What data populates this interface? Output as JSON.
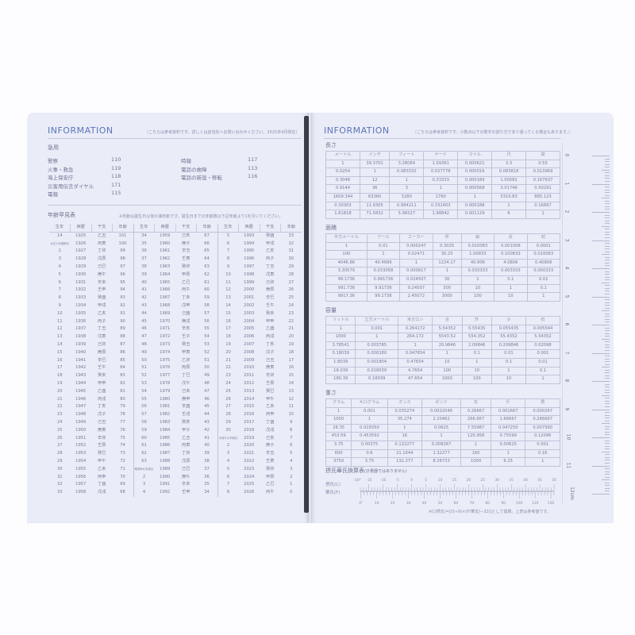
{
  "left": {
    "title": "INFORMATION",
    "note": "（こちらは参考資料です。詳しくは該当先へお問い合わせください。2025年4月現在）",
    "emergency": {
      "heading": "急用",
      "col1": [
        {
          "label": "警察",
          "num": "110"
        },
        {
          "label": "火事・救急",
          "num": "119"
        },
        {
          "label": "海上保安庁",
          "num": "118"
        },
        {
          "label": "災害用伝言ダイヤル",
          "num": "171"
        },
        {
          "label": "電報",
          "num": "115"
        }
      ],
      "col2": [
        {
          "label": "時報",
          "num": "117"
        },
        {
          "label": "電話の故障",
          "num": "113"
        },
        {
          "label": "電話の新設・移転",
          "num": "116"
        }
      ]
    },
    "age_table": {
      "heading": "年齢早見表",
      "note": "※年齢は誕生日以後の満年齢です。誕生日までの年齢数は下記年齢より1を引いてください。",
      "headers": [
        "生年",
        "西暦",
        "干支",
        "年齢"
      ],
      "groups": [
        [
          [
            "14",
            "1925",
            "乙丑",
            "101"
          ],
          [
            "大正15|昭和元",
            "1926",
            "丙寅",
            "100"
          ],
          [
            "2",
            "1927",
            "丁卯",
            "99"
          ],
          [
            "3",
            "1928",
            "戊辰",
            "98"
          ],
          [
            "4",
            "1929",
            "己巳",
            "97"
          ],
          [
            "5",
            "1930",
            "庚午",
            "96"
          ],
          [
            "6",
            "1931",
            "辛未",
            "95"
          ],
          [
            "7",
            "1932",
            "壬申",
            "94"
          ],
          [
            "8",
            "1933",
            "癸酉",
            "93"
          ],
          [
            "9",
            "1934",
            "甲戌",
            "92"
          ],
          [
            "10",
            "1935",
            "乙亥",
            "91"
          ],
          [
            "11",
            "1936",
            "丙子",
            "90"
          ],
          [
            "12",
            "1937",
            "丁丑",
            "89"
          ],
          [
            "13",
            "1938",
            "戊寅",
            "88"
          ],
          [
            "14",
            "1939",
            "己卯",
            "87"
          ],
          [
            "15",
            "1940",
            "庚辰",
            "86"
          ],
          [
            "16",
            "1941",
            "辛巳",
            "85"
          ],
          [
            "17",
            "1942",
            "壬午",
            "84"
          ],
          [
            "18",
            "1943",
            "癸未",
            "83"
          ],
          [
            "19",
            "1944",
            "甲申",
            "82"
          ],
          [
            "20",
            "1945",
            "乙酉",
            "81"
          ],
          [
            "21",
            "1946",
            "丙戌",
            "80"
          ],
          [
            "22",
            "1947",
            "丁亥",
            "79"
          ],
          [
            "23",
            "1948",
            "戊子",
            "78"
          ],
          [
            "24",
            "1949",
            "己丑",
            "77"
          ],
          [
            "25",
            "1950",
            "庚寅",
            "76"
          ],
          [
            "26",
            "1951",
            "辛卯",
            "75"
          ],
          [
            "27",
            "1952",
            "壬辰",
            "74"
          ],
          [
            "28",
            "1953",
            "癸巳",
            "73"
          ],
          [
            "29",
            "1954",
            "甲午",
            "72"
          ],
          [
            "30",
            "1955",
            "乙未",
            "71"
          ],
          [
            "31",
            "1956",
            "丙申",
            "70"
          ],
          [
            "32",
            "1957",
            "丁酉",
            "69"
          ],
          [
            "33",
            "1958",
            "戊戌",
            "68"
          ]
        ],
        [
          [
            "34",
            "1959",
            "己亥",
            "67"
          ],
          [
            "35",
            "1960",
            "庚子",
            "66"
          ],
          [
            "36",
            "1961",
            "辛丑",
            "65"
          ],
          [
            "37",
            "1962",
            "壬寅",
            "64"
          ],
          [
            "38",
            "1963",
            "癸卯",
            "63"
          ],
          [
            "39",
            "1964",
            "甲辰",
            "62"
          ],
          [
            "40",
            "1965",
            "乙巳",
            "61"
          ],
          [
            "41",
            "1966",
            "丙午",
            "60"
          ],
          [
            "42",
            "1967",
            "丁未",
            "59"
          ],
          [
            "43",
            "1968",
            "戊申",
            "58"
          ],
          [
            "44",
            "1969",
            "己酉",
            "57"
          ],
          [
            "45",
            "1970",
            "庚戌",
            "56"
          ],
          [
            "46",
            "1971",
            "辛亥",
            "55"
          ],
          [
            "47",
            "1972",
            "壬子",
            "54"
          ],
          [
            "48",
            "1973",
            "癸丑",
            "53"
          ],
          [
            "49",
            "1974",
            "甲寅",
            "52"
          ],
          [
            "50",
            "1975",
            "乙卯",
            "51"
          ],
          [
            "51",
            "1976",
            "丙辰",
            "50"
          ],
          [
            "52",
            "1977",
            "丁巳",
            "49"
          ],
          [
            "53",
            "1978",
            "戊午",
            "48"
          ],
          [
            "54",
            "1979",
            "己未",
            "47"
          ],
          [
            "55",
            "1980",
            "庚申",
            "46"
          ],
          [
            "56",
            "1981",
            "辛酉",
            "45"
          ],
          [
            "57",
            "1982",
            "壬戌",
            "44"
          ],
          [
            "58",
            "1983",
            "癸亥",
            "43"
          ],
          [
            "59",
            "1984",
            "甲子",
            "42"
          ],
          [
            "60",
            "1985",
            "乙丑",
            "41"
          ],
          [
            "61",
            "1986",
            "丙寅",
            "40"
          ],
          [
            "62",
            "1987",
            "丁卯",
            "39"
          ],
          [
            "63",
            "1988",
            "戊辰",
            "38"
          ],
          [
            "昭和64|平成元",
            "1989",
            "己巳",
            "37"
          ],
          [
            "2",
            "1990",
            "庚午",
            "36"
          ],
          [
            "3",
            "1991",
            "辛未",
            "35"
          ],
          [
            "4",
            "1992",
            "壬申",
            "34"
          ]
        ],
        [
          [
            "5",
            "1993",
            "癸酉",
            "33"
          ],
          [
            "6",
            "1994",
            "甲戌",
            "32"
          ],
          [
            "7",
            "1995",
            "乙亥",
            "31"
          ],
          [
            "8",
            "1996",
            "丙子",
            "30"
          ],
          [
            "9",
            "1997",
            "丁丑",
            "29"
          ],
          [
            "10",
            "1998",
            "戊寅",
            "28"
          ],
          [
            "11",
            "1999",
            "己卯",
            "27"
          ],
          [
            "12",
            "2000",
            "庚辰",
            "26"
          ],
          [
            "13",
            "2001",
            "辛巳",
            "25"
          ],
          [
            "14",
            "2002",
            "壬午",
            "24"
          ],
          [
            "15",
            "2003",
            "癸未",
            "23"
          ],
          [
            "16",
            "2004",
            "甲申",
            "22"
          ],
          [
            "17",
            "2005",
            "乙酉",
            "21"
          ],
          [
            "18",
            "2006",
            "丙戌",
            "20"
          ],
          [
            "19",
            "2007",
            "丁亥",
            "19"
          ],
          [
            "20",
            "2008",
            "戊子",
            "18"
          ],
          [
            "21",
            "2009",
            "己丑",
            "17"
          ],
          [
            "22",
            "2010",
            "庚寅",
            "16"
          ],
          [
            "23",
            "2011",
            "辛卯",
            "15"
          ],
          [
            "24",
            "2012",
            "壬辰",
            "14"
          ],
          [
            "25",
            "2013",
            "癸巳",
            "13"
          ],
          [
            "26",
            "2014",
            "甲午",
            "12"
          ],
          [
            "27",
            "2015",
            "乙未",
            "11"
          ],
          [
            "28",
            "2016",
            "丙申",
            "10"
          ],
          [
            "29",
            "2017",
            "丁酉",
            "9"
          ],
          [
            "30",
            "2018",
            "戊戌",
            "8"
          ],
          [
            "平成31|令和元",
            "2019",
            "己亥",
            "7"
          ],
          [
            "2",
            "2020",
            "庚子",
            "6"
          ],
          [
            "3",
            "2021",
            "辛丑",
            "5"
          ],
          [
            "4",
            "2022",
            "壬寅",
            "4"
          ],
          [
            "5",
            "2023",
            "癸卯",
            "3"
          ],
          [
            "6",
            "2024",
            "甲辰",
            "2"
          ],
          [
            "7",
            "2025",
            "乙巳",
            "1"
          ],
          [
            "8",
            "2026",
            "丙午",
            "0"
          ]
        ]
      ]
    }
  },
  "right": {
    "title": "INFORMATION",
    "note": "（こちらは参考資料です。小数点以下の数字の割り方で多少違ってくる場合もあります。）",
    "tables": [
      {
        "heading": "長さ",
        "rows": [
          [
            "メートル",
            "インチ",
            "フィート",
            "ヤード",
            "マイル",
            "尺",
            "間"
          ],
          [
            "1",
            "39.3701",
            "3.28084",
            "1.09361",
            "0.000621",
            "3.3",
            "0.55"
          ],
          [
            "0.0254",
            "1",
            "0.083332",
            "0.027778",
            "0.000016",
            "0.083818",
            "0.013969"
          ],
          [
            "0.3048",
            "12",
            "1",
            "0.33333",
            "0.000189",
            "1.00582",
            "0.167637"
          ],
          [
            "0.9144",
            "36",
            "3",
            "1",
            "0.000568",
            "3.01746",
            "0.50291"
          ],
          [
            "1609.344",
            "63360",
            "5280",
            "1760",
            "1",
            "5310.83",
            "885.123"
          ],
          [
            "0.30303",
            "11.9305",
            "0.994211",
            "0.331403",
            "0.000188",
            "1",
            "0.16667"
          ],
          [
            "1.81818",
            "71.5832",
            "5.96527",
            "1.98842",
            "0.001129",
            "6",
            "1"
          ]
        ]
      },
      {
        "heading": "面積",
        "rows": [
          [
            "平方メートル",
            "アール",
            "エーカー",
            "坪",
            "畝",
            "反",
            "町"
          ],
          [
            "1",
            "0.01",
            "0.000247",
            "0.3025",
            "0.010083",
            "0.001008",
            "0.0001"
          ],
          [
            "100",
            "1",
            "0.02471",
            "30.25",
            "1.00833",
            "0.100833",
            "0.010083"
          ],
          [
            "4046.86",
            "40.4686",
            "1",
            "1224.17",
            "40.806",
            "4.0806",
            "0.40806"
          ],
          [
            "3.30579",
            "0.033058",
            "0.000817",
            "1",
            "0.033333",
            "0.003333",
            "0.000333"
          ],
          [
            "99.1736",
            "0.991736",
            "0.024507",
            "30",
            "1",
            "0.1",
            "0.01"
          ],
          [
            "991.736",
            "9.91736",
            "0.24507",
            "300",
            "10",
            "1",
            "0.1"
          ],
          [
            "9917.36",
            "99.1736",
            "2.45072",
            "3000",
            "100",
            "10",
            "1"
          ]
        ]
      },
      {
        "heading": "容量",
        "rows": [
          [
            "リットル",
            "立方メートル",
            "米ガロン",
            "合",
            "升",
            "斗",
            "石"
          ],
          [
            "1",
            "0.001",
            "0.264172",
            "5.54352",
            "0.55435",
            "0.055435",
            "0.005544"
          ],
          [
            "1000",
            "1",
            "264.172",
            "5543.52",
            "554.352",
            "55.4352",
            "5.54352"
          ],
          [
            "3.78541",
            "0.003785",
            "1",
            "20.9846",
            "2.09846",
            "0.209846",
            "0.02098"
          ],
          [
            "0.18039",
            "0.000180",
            "0.047654",
            "1",
            "0.1",
            "0.01",
            "0.001"
          ],
          [
            "1.8039",
            "0.001804",
            "0.47654",
            "10",
            "1",
            "0.1",
            "0.01"
          ],
          [
            "18.039",
            "0.018039",
            "4.7654",
            "100",
            "10",
            "1",
            "0.1"
          ],
          [
            "180.39",
            "0.18039",
            "47.654",
            "1000",
            "100",
            "10",
            "1"
          ]
        ]
      },
      {
        "heading": "重さ",
        "rows": [
          [
            "グラム",
            "キログラム",
            "オンス",
            "ポンド",
            "匁",
            "斤",
            "貫"
          ],
          [
            "1",
            "0.001",
            "0.035274",
            "0.0022046",
            "0.26667",
            "0.001667",
            "0.000267"
          ],
          [
            "1000",
            "1",
            "35.274",
            "2.20462",
            "266.667",
            "1.66667",
            "0.266667"
          ],
          [
            "28.35",
            "0.028350",
            "1",
            "0.0625",
            "7.55987",
            "0.047250",
            "0.007560"
          ],
          [
            "453.59",
            "0.453592",
            "16",
            "1",
            "120.958",
            "0.75599",
            "0.12096"
          ],
          [
            "3.75",
            "0.00375",
            "0.132277",
            "0.008267",
            "1",
            "0.00625",
            "0.001"
          ],
          [
            "600",
            "0.6",
            "21.1644",
            "1.32277",
            "160",
            "1",
            "0.16"
          ],
          [
            "3750",
            "3.75",
            "132.277",
            "8.26733",
            "1000",
            "6.25",
            "1"
          ]
        ]
      }
    ],
    "temperature": {
      "heading": "摂氏華氏換算表",
      "sub": "(計量器ではありません)",
      "c_label": "摂氏(C)",
      "f_label": "華氏(F)",
      "c_ticks": [
        "-18°",
        "-15",
        "-10",
        "-5",
        "0",
        "5",
        "10",
        "15",
        "20",
        "25",
        "30",
        "35",
        "40",
        "45",
        "50"
      ],
      "f_ticks": [
        "0°",
        "10",
        "20",
        "30",
        "40",
        "50",
        "60",
        "70",
        "80",
        "90",
        "100",
        "110",
        "120"
      ],
      "formula": "※C(摂氏)=[(5÷9)×(F(華氏)−32)]として換算。上表は参考値です。"
    },
    "ruler": {
      "labels": [
        "0",
        "1",
        "2",
        "3",
        "4",
        "5",
        "6",
        "7",
        "8",
        "9",
        "10",
        "11",
        "12"
      ],
      "unit": "cm"
    }
  },
  "colors": {
    "page": "#eaecf8",
    "title": "#5b74b8",
    "text": "#7d829c",
    "spine": "#3a3d48"
  }
}
